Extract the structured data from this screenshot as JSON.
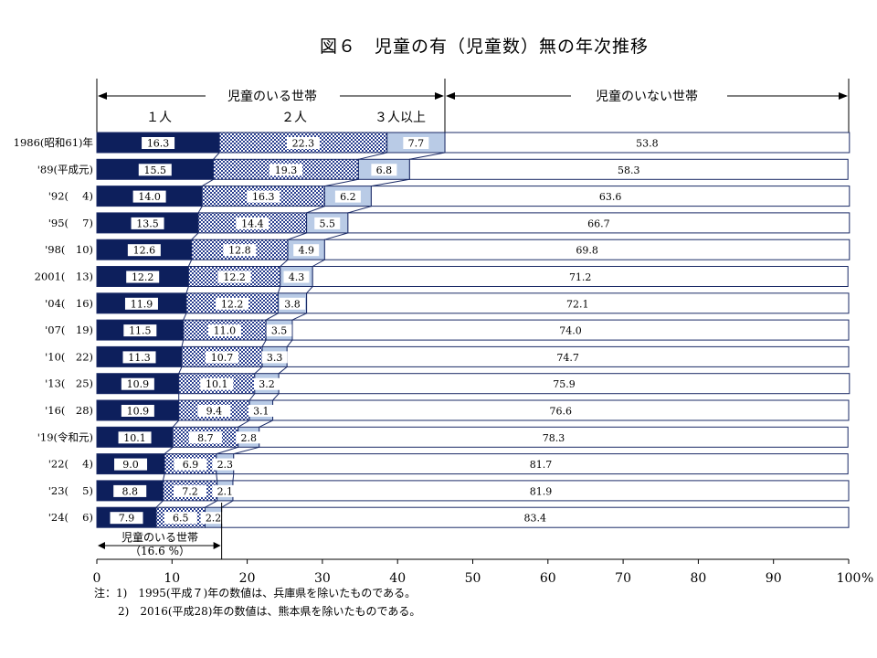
{
  "title": "図６　児童の有（児童数）無の年次推移",
  "groups": {
    "with_children": "児童のいる世帯",
    "without_children": "児童のいない世帯"
  },
  "series_labels": [
    "１人",
    "２人",
    "３人以上"
  ],
  "colors": {
    "one": "#0d1f5c",
    "two_fg": "#2a3f8f",
    "two_bg": "#ffffff",
    "three": "#b9cbe6",
    "none": "#ffffff",
    "stroke": "#1a2a66"
  },
  "chart_data": {
    "type": "bar",
    "orientation": "horizontal",
    "stacked": true,
    "title": "図６　児童の有（児童数）無の年次推移",
    "categories": [
      "1986(昭和61)年",
      "'89(平成元)",
      "'92(　 4)",
      "'95(　 7)",
      "'98(　10)",
      "2001(　13)",
      "'04(　16)",
      "'07(　19)",
      "'10(　22)",
      "'13(　25)",
      "'16(　28)",
      "'19(令和元)",
      "'22(　 4)",
      "'23(　 5)",
      "'24(　 6)"
    ],
    "series": [
      {
        "name": "１人",
        "values": [
          16.3,
          15.5,
          14.0,
          13.5,
          12.6,
          12.2,
          11.9,
          11.5,
          11.3,
          10.9,
          10.9,
          10.1,
          9.0,
          8.8,
          7.9
        ]
      },
      {
        "name": "２人",
        "values": [
          22.3,
          19.3,
          16.3,
          14.4,
          12.8,
          12.2,
          12.2,
          11.0,
          10.7,
          10.1,
          9.4,
          8.7,
          6.9,
          7.2,
          6.5
        ]
      },
      {
        "name": "３人以上",
        "values": [
          7.7,
          6.8,
          6.2,
          5.5,
          4.9,
          4.3,
          3.8,
          3.5,
          3.3,
          3.2,
          3.1,
          2.8,
          2.3,
          2.1,
          2.2
        ]
      },
      {
        "name": "児童のいない世帯",
        "values": [
          53.8,
          58.3,
          63.6,
          66.7,
          69.8,
          71.2,
          72.1,
          74.0,
          74.7,
          75.9,
          76.6,
          78.3,
          81.7,
          81.9,
          83.4
        ]
      }
    ],
    "xlim": [
      0,
      100
    ],
    "xticks": [
      0,
      10,
      20,
      30,
      40,
      50,
      60,
      70,
      80,
      90,
      100
    ],
    "xtick_labels": [
      "0",
      "10",
      "20",
      "30",
      "40",
      "50",
      "60",
      "70",
      "80",
      "90",
      "100"
    ],
    "x_unit": "%"
  },
  "annotation": {
    "line1": "児童のいる世帯",
    "line2": "（16.6 %）",
    "value": 16.6
  },
  "notes": [
    "注：1)　1995(平成７)年の数値は、兵庫県を除いたものである。",
    "2)　2016(平成28)年の数値は、熊本県を除いたものである。"
  ]
}
